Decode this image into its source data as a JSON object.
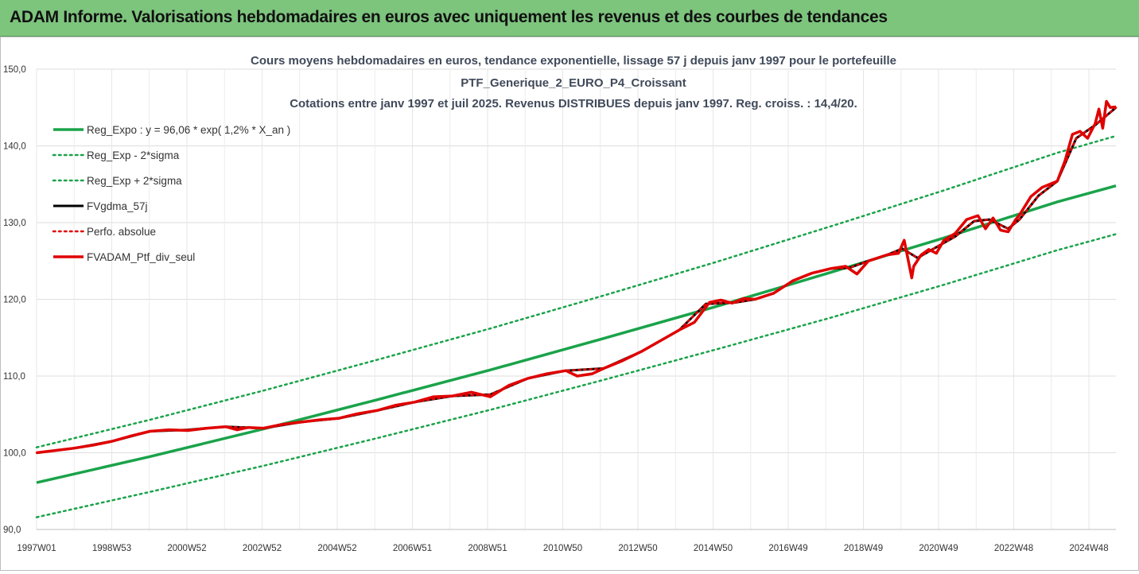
{
  "banner": {
    "title": "ADAM Informe. Valorisations hebdomadaires en euros avec uniquement les revenus et des courbes de tendances"
  },
  "chart_data": {
    "type": "line",
    "title_lines": [
      "Cours moyens hebdomadaires  en euros, tendance exponentielle, lissage 57 j depuis janv 1997 pour le portefeuille",
      "PTF_Generique_2_EURO_P4_Croissant",
      "Cotations  entre janv 1997 et juil 2025. Revenus DISTRIBUES depuis janv 1997. Reg. croiss. : 14,4/20."
    ],
    "xlabel": "",
    "ylabel": "",
    "x_ticks": [
      "1997W01",
      "1998W53",
      "2000W52",
      "2002W52",
      "2004W52",
      "2006W51",
      "2008W51",
      "2010W50",
      "2012W50",
      "2014W50",
      "2016W49",
      "2018W49",
      "2020W49",
      "2022W48",
      "2024W48"
    ],
    "y_ticks": [
      "90,0",
      "100,0",
      "110,0",
      "120,0",
      "130,0",
      "140,0",
      "150,0"
    ],
    "xlim": [
      1997.0,
      2025.55
    ],
    "ylim": [
      90,
      150
    ],
    "grid": true,
    "legend_position": "top-left",
    "series": [
      {
        "name": "Reg_Expo : y = 96,06 *  exp( 1,2% *  X_an )",
        "color": "#1aa34a",
        "style": "solid",
        "width": 3.5,
        "x": [
          1997.0,
          2000.0,
          2003.0,
          2006.0,
          2009.0,
          2012.0,
          2015.0,
          2018.0,
          2021.0,
          2024.0,
          2025.55
        ],
        "y": [
          96.1,
          99.5,
          103.1,
          106.9,
          110.8,
          114.9,
          119.1,
          123.5,
          128.0,
          132.7,
          134.8
        ]
      },
      {
        "name": "Reg_Exp - 2*sigma",
        "color": "#1aa34a",
        "style": "dotted",
        "width": 2.5,
        "x": [
          1997.0,
          2000.0,
          2003.0,
          2006.0,
          2009.0,
          2012.0,
          2015.0,
          2018.0,
          2021.0,
          2024.0,
          2025.55
        ],
        "y": [
          91.6,
          94.9,
          98.3,
          101.9,
          105.6,
          109.5,
          113.5,
          117.6,
          121.9,
          126.4,
          128.5
        ]
      },
      {
        "name": "Reg_Exp + 2*sigma",
        "color": "#1aa34a",
        "style": "dotted",
        "width": 2.5,
        "x": [
          1997.0,
          2000.0,
          2003.0,
          2006.0,
          2009.0,
          2012.0,
          2015.0,
          2018.0,
          2021.0,
          2024.0,
          2025.55
        ],
        "y": [
          100.7,
          104.3,
          108.1,
          112.1,
          116.2,
          120.5,
          124.9,
          129.5,
          134.2,
          139.1,
          141.3
        ]
      },
      {
        "name": "FVgdma_57j",
        "color": "#000000",
        "style": "solid",
        "width": 3,
        "x": [
          1997.0,
          1998.0,
          1999.0,
          2000.0,
          2001.0,
          2002.0,
          2003.0,
          2004.0,
          2005.0,
          2006.0,
          2007.0,
          2008.0,
          2009.0,
          2010.0,
          2011.0,
          2012.0,
          2013.0,
          2014.0,
          2014.7,
          2015.5,
          2016.0,
          2016.5,
          2017.0,
          2017.5,
          2018.0,
          2018.5,
          2019.0,
          2019.5,
          2019.9,
          2020.3,
          2020.8,
          2021.3,
          2021.8,
          2022.2,
          2022.7,
          2023.0,
          2023.5,
          2024.0,
          2024.5,
          2025.0,
          2025.55
        ],
        "y": [
          100.0,
          100.6,
          101.5,
          102.8,
          103.0,
          103.4,
          103.2,
          104.0,
          104.5,
          105.5,
          106.6,
          107.4,
          107.6,
          109.7,
          110.7,
          111.0,
          113.2,
          116.0,
          119.4,
          119.6,
          120.0,
          120.8,
          122.4,
          123.4,
          124.0,
          124.1,
          125.0,
          125.8,
          126.6,
          125.4,
          126.8,
          128.2,
          130.2,
          130.4,
          129.2,
          130.4,
          133.5,
          135.4,
          141.0,
          142.7,
          145.0
        ]
      },
      {
        "name": "Perfo. absolue",
        "color": "#e00000",
        "style": "dotted",
        "width": 2.5,
        "x": [
          1997.0,
          1998.0,
          1999.0,
          2000.0,
          2001.0,
          2002.0,
          2003.0,
          2004.0,
          2005.0,
          2006.0,
          2007.0,
          2008.0,
          2009.0,
          2010.0,
          2011.0,
          2012.0,
          2013.0,
          2014.0,
          2014.7,
          2015.5,
          2016.0,
          2016.5,
          2017.0,
          2017.5,
          2018.0,
          2018.5,
          2019.0,
          2019.5,
          2019.9,
          2020.3,
          2020.8,
          2021.3,
          2021.8,
          2022.2,
          2022.7,
          2023.0,
          2023.5,
          2024.0,
          2024.5,
          2025.0,
          2025.55
        ],
        "y": [
          100.0,
          100.6,
          101.5,
          102.8,
          103.0,
          103.4,
          103.2,
          104.0,
          104.5,
          105.5,
          106.6,
          107.4,
          107.6,
          109.7,
          110.7,
          111.0,
          113.2,
          116.0,
          119.4,
          119.6,
          120.0,
          120.8,
          122.4,
          123.4,
          124.0,
          124.1,
          125.0,
          125.8,
          126.6,
          125.4,
          126.8,
          128.2,
          130.2,
          130.4,
          129.2,
          130.4,
          133.5,
          135.4,
          141.0,
          142.7,
          145.0
        ]
      },
      {
        "name": "FVADAM_Ptf_div_seul",
        "color": "#e00000",
        "style": "solid",
        "width": 3.5,
        "x": [
          1997.0,
          1997.5,
          1998.0,
          1998.5,
          1999.0,
          1999.5,
          2000.0,
          2000.5,
          2001.0,
          2001.5,
          2002.0,
          2002.3,
          2002.6,
          2003.0,
          2003.5,
          2004.0,
          2004.5,
          2005.0,
          2005.5,
          2006.0,
          2006.5,
          2007.0,
          2007.5,
          2008.0,
          2008.5,
          2009.0,
          2009.5,
          2010.0,
          2010.5,
          2011.0,
          2011.3,
          2011.7,
          2012.0,
          2012.5,
          2013.0,
          2013.5,
          2014.0,
          2014.4,
          2014.8,
          2015.1,
          2015.4,
          2015.7,
          2016.0,
          2016.5,
          2017.0,
          2017.5,
          2018.0,
          2018.4,
          2018.7,
          2019.0,
          2019.5,
          2019.8,
          2019.95,
          2020.15,
          2020.2,
          2020.4,
          2020.6,
          2020.8,
          2021.0,
          2021.3,
          2021.6,
          2021.9,
          2022.1,
          2022.3,
          2022.5,
          2022.7,
          2022.9,
          2023.0,
          2023.3,
          2023.6,
          2024.0,
          2024.2,
          2024.4,
          2024.6,
          2024.8,
          2025.0,
          2025.1,
          2025.2,
          2025.3,
          2025.4,
          2025.55
        ],
        "y": [
          100.0,
          100.3,
          100.6,
          101.0,
          101.5,
          102.2,
          102.8,
          103.0,
          102.9,
          103.2,
          103.4,
          103.0,
          103.3,
          103.2,
          103.7,
          104.0,
          104.3,
          104.5,
          105.1,
          105.5,
          106.2,
          106.6,
          107.3,
          107.4,
          107.9,
          107.3,
          108.8,
          109.7,
          110.3,
          110.7,
          110.0,
          110.3,
          111.0,
          112.0,
          113.2,
          114.6,
          116.0,
          117.0,
          119.6,
          119.9,
          119.5,
          120.1,
          120.0,
          120.8,
          122.4,
          123.4,
          124.0,
          124.3,
          123.3,
          125.0,
          125.8,
          126.0,
          127.7,
          122.8,
          124.3,
          125.8,
          126.5,
          126.0,
          127.7,
          128.6,
          130.4,
          130.9,
          129.2,
          130.6,
          129.0,
          128.8,
          130.4,
          131.0,
          133.4,
          134.6,
          135.4,
          138.0,
          141.5,
          141.9,
          141.0,
          142.9,
          144.8,
          142.3,
          145.8,
          145.0,
          145.1
        ]
      }
    ]
  }
}
